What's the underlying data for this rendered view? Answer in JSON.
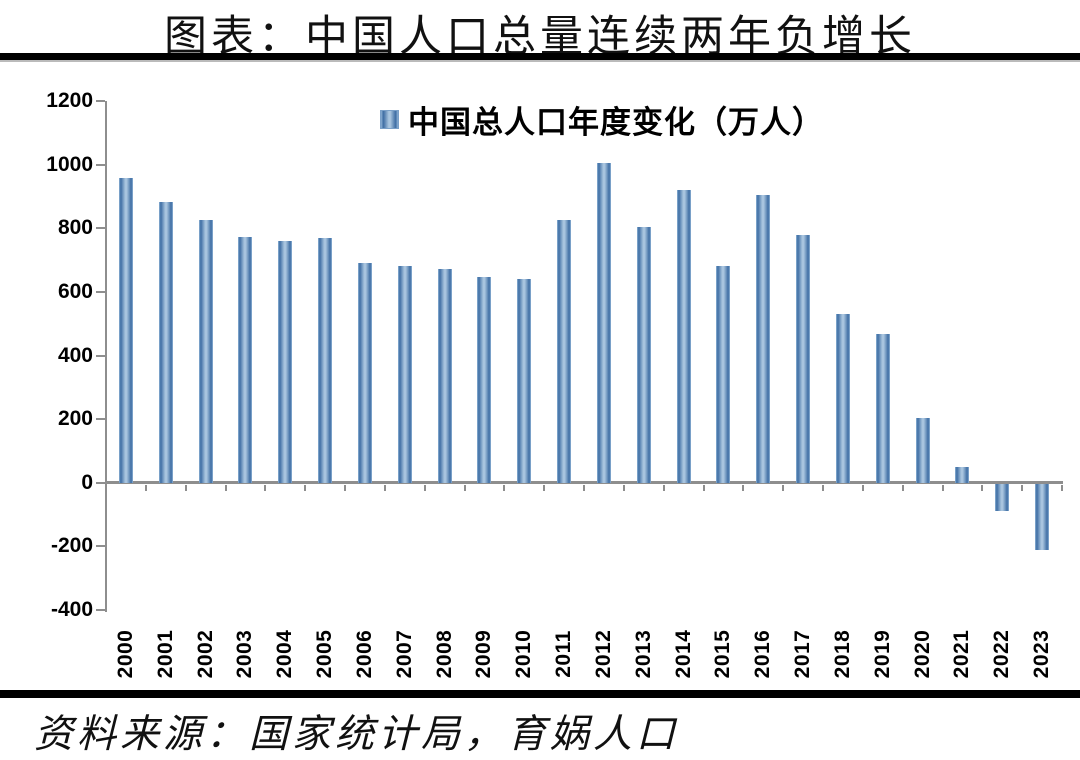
{
  "header": {
    "title": "图表：中国人口总量连续两年负增长"
  },
  "chart_data": {
    "type": "bar",
    "legend": "中国总人口年度变化（万人）",
    "legend_position": "top-center",
    "categories": [
      "2000",
      "2001",
      "2002",
      "2003",
      "2004",
      "2005",
      "2006",
      "2007",
      "2008",
      "2009",
      "2010",
      "2011",
      "2012",
      "2013",
      "2014",
      "2015",
      "2016",
      "2017",
      "2018",
      "2019",
      "2020",
      "2021",
      "2022",
      "2023"
    ],
    "values": [
      957,
      884,
      826,
      774,
      761,
      768,
      692,
      681,
      673,
      648,
      641,
      825,
      1006,
      804,
      920,
      680,
      906,
      779,
      530,
      467,
      204,
      48,
      -85,
      -208
    ],
    "title": "图表：中国人口总量连续两年负增长",
    "xlabel": "",
    "ylabel": "",
    "ylim": [
      -400,
      1200
    ],
    "ytick_step": 200,
    "grid": false,
    "colors": {
      "bar_edge": "#3e6da3",
      "bar_center": "#a9c5df",
      "bar_outer": "#8fb3d6",
      "axis": "#8e8e8e"
    }
  },
  "footer": {
    "source": "资料来源：国家统计局，育娲人口"
  }
}
